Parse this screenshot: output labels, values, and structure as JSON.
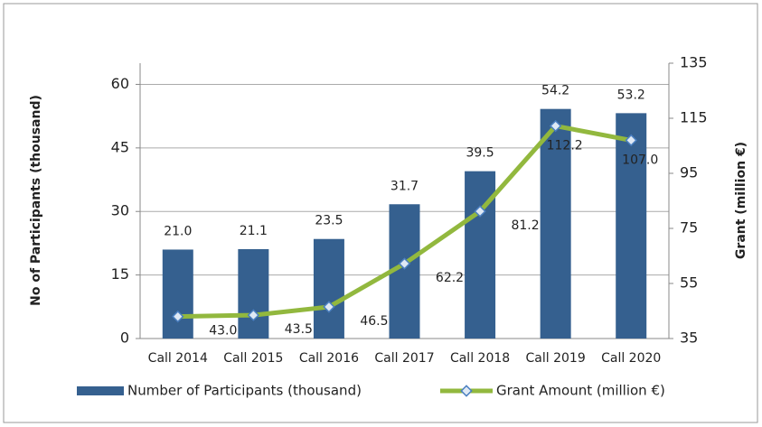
{
  "chart_data": {
    "type": "bar_line",
    "categories": [
      "Call 2014",
      "Call 2015",
      "Call 2016",
      "Call 2017",
      "Call 2018",
      "Call 2019",
      "Call 2020"
    ],
    "series": [
      {
        "name": "Number of Participants (thousand)",
        "color": "#35608f",
        "type": "bar",
        "values": [
          21.0,
          21.1,
          23.5,
          31.7,
          39.5,
          54.2,
          53.2
        ],
        "value_labels": [
          "21.0",
          "21.1",
          "23.5",
          "31.7",
          "39.5",
          "54.2",
          "53.2"
        ]
      },
      {
        "name": "Grant Amount (million €)",
        "color": "#92b83e",
        "type": "line",
        "axis": "y2",
        "values": [
          43.0,
          43.5,
          46.5,
          62.2,
          81.2,
          112.2,
          107.0
        ],
        "value_labels": [
          "43.0",
          "43.5",
          "46.5",
          "62.2",
          "81.2",
          "112.2",
          "107.0"
        ]
      }
    ],
    "ylabel": "No of Participants (thousand)",
    "y2label": "Grant (million €)",
    "ylim": [
      0,
      65
    ],
    "yticks": [
      0,
      15,
      30,
      45,
      60
    ],
    "y2lim": [
      35,
      135
    ],
    "y2ticks": [
      35,
      55,
      75,
      95,
      115,
      135
    ],
    "grid": true,
    "legend": "bottom"
  }
}
